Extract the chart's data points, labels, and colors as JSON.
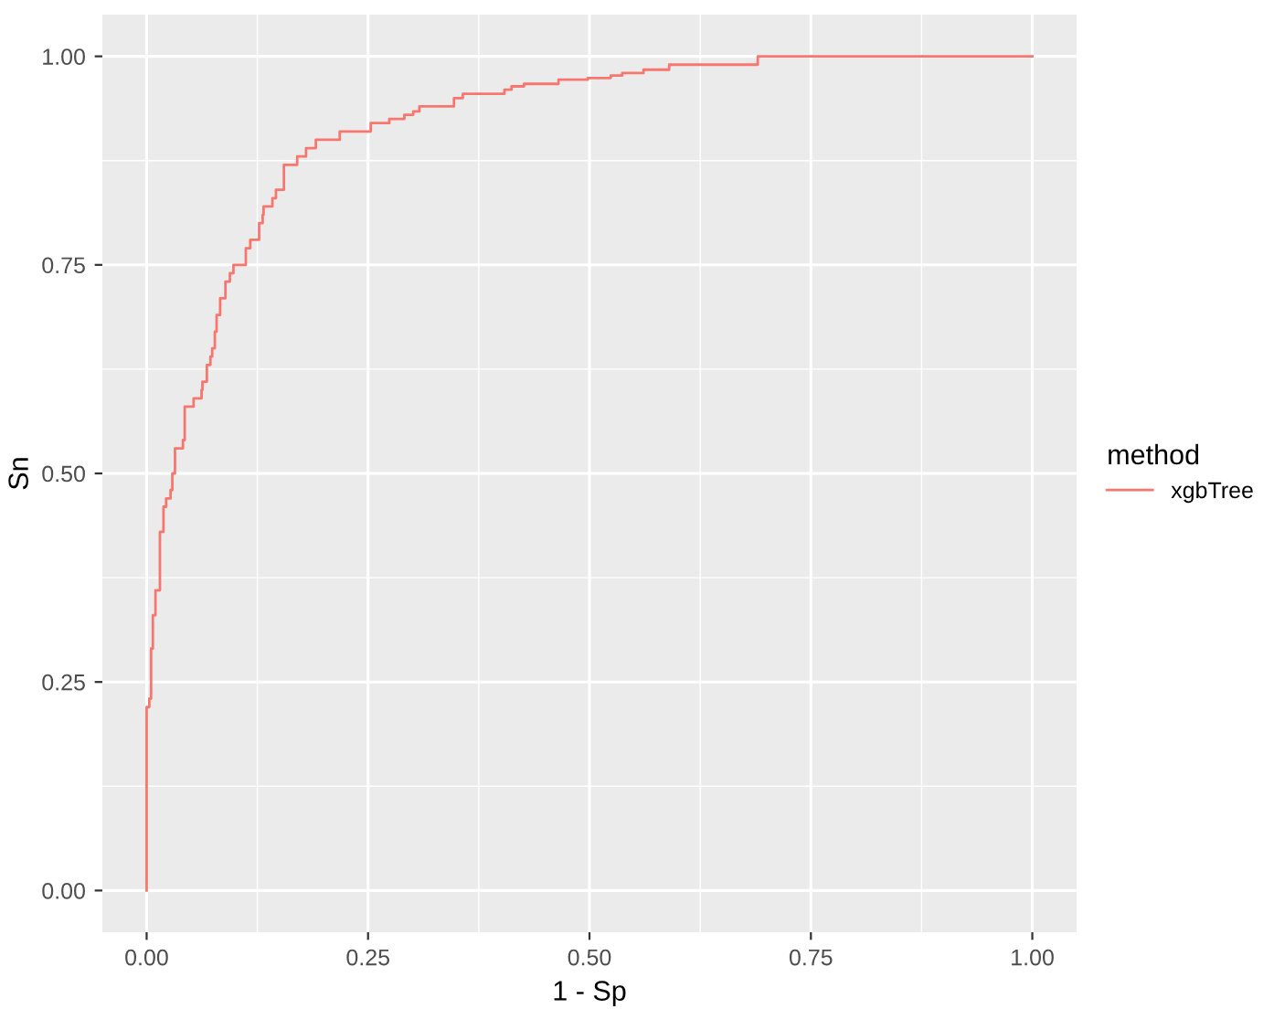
{
  "chart_data": {
    "type": "step",
    "xlabel": "1 - Sp",
    "ylabel": "Sn",
    "legend_title": "method",
    "legend": "right",
    "grid": true,
    "xlim": [
      -0.05,
      1.05
    ],
    "ylim": [
      -0.05,
      1.05
    ],
    "xticks": [
      {
        "value": 0,
        "label": "0.00"
      },
      {
        "value": 0.25,
        "label": "0.25"
      },
      {
        "value": 0.5,
        "label": "0.50"
      },
      {
        "value": 0.75,
        "label": "0.75"
      },
      {
        "value": 1,
        "label": "1.00"
      }
    ],
    "yticks": [
      {
        "value": 0,
        "label": "0.00"
      },
      {
        "value": 0.25,
        "label": "0.25"
      },
      {
        "value": 0.5,
        "label": "0.50"
      },
      {
        "value": 0.75,
        "label": "0.75"
      },
      {
        "value": 1,
        "label": "1.00"
      }
    ],
    "series": [
      {
        "name": "xgbTree",
        "color": "#f8766d",
        "x": [
          0,
          0,
          0.003,
          0.005,
          0.007,
          0.01,
          0.015,
          0.019,
          0.022,
          0.027,
          0.029,
          0.032,
          0.041,
          0.043,
          0.053,
          0.062,
          0.063,
          0.068,
          0.072,
          0.074,
          0.077,
          0.079,
          0.083,
          0.089,
          0.094,
          0.098,
          0.112,
          0.117,
          0.127,
          0.131,
          0.132,
          0.142,
          0.146,
          0.155,
          0.17,
          0.18,
          0.191,
          0.218,
          0.253,
          0.274,
          0.291,
          0.301,
          0.308,
          0.347,
          0.357,
          0.404,
          0.412,
          0.426,
          0.465,
          0.498,
          0.524,
          0.537,
          0.561,
          0.59,
          0.69,
          1.0
        ],
        "values": [
          0,
          0.22,
          0.23,
          0.29,
          0.33,
          0.36,
          0.43,
          0.46,
          0.47,
          0.48,
          0.5,
          0.53,
          0.54,
          0.58,
          0.59,
          0.6,
          0.61,
          0.63,
          0.64,
          0.65,
          0.67,
          0.69,
          0.71,
          0.73,
          0.74,
          0.75,
          0.77,
          0.78,
          0.8,
          0.81,
          0.82,
          0.83,
          0.84,
          0.87,
          0.88,
          0.89,
          0.9,
          0.91,
          0.92,
          0.925,
          0.93,
          0.934,
          0.94,
          0.95,
          0.955,
          0.96,
          0.964,
          0.967,
          0.972,
          0.974,
          0.977,
          0.98,
          0.984,
          0.99,
          1.0,
          1.0
        ]
      }
    ]
  }
}
